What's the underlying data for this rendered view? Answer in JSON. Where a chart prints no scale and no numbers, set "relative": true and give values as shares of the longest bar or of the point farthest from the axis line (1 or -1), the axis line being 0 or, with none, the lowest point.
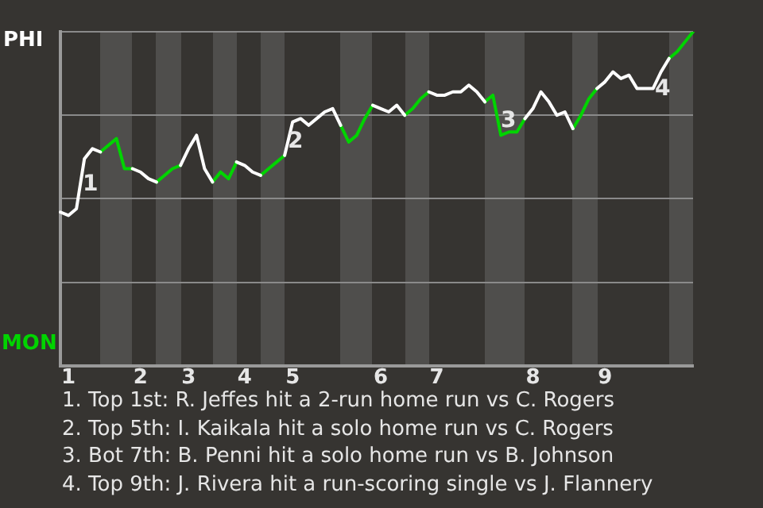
{
  "chart_data": {
    "type": "line",
    "relative": true,
    "categories": [
      null,
      "1",
      null,
      null,
      null,
      null,
      null,
      null,
      null,
      null,
      "2",
      null,
      null,
      null,
      null,
      null,
      "3",
      null,
      null,
      null,
      null,
      null,
      null,
      "4",
      null,
      null,
      null,
      null,
      null,
      "5",
      null,
      null,
      null,
      null,
      null,
      null,
      null,
      null,
      null,
      null,
      "6",
      null,
      null,
      null,
      null,
      null,
      null,
      "7",
      null,
      null,
      null,
      null,
      null,
      null,
      null,
      null,
      null,
      null,
      null,
      "8",
      null,
      null,
      null,
      null,
      null,
      null,
      null,
      null,
      "9",
      null,
      null,
      null,
      null,
      null,
      null,
      null,
      null,
      null,
      null,
      null
    ],
    "grid": "y",
    "legend": false,
    "marker": "none",
    "line_style": "solid",
    "series": [
      {
        "color": "#ffffff",
        "values": [
          0.46,
          0.45,
          0.47,
          0.62,
          0.65,
          0.64,
          null,
          null,
          null,
          0.59,
          0.58,
          0.56,
          0.55,
          null,
          null,
          0.6,
          0.65,
          0.69,
          0.59,
          0.55,
          null,
          null,
          0.61,
          0.6,
          0.58,
          0.57,
          null,
          null,
          0.63,
          0.73,
          0.74,
          0.72,
          0.74,
          0.76,
          0.77,
          0.72,
          null,
          null,
          null,
          0.78,
          0.77,
          0.76,
          0.78,
          0.75,
          null,
          null,
          0.82,
          0.81,
          0.81,
          0.82,
          0.82,
          0.84,
          0.82,
          0.79,
          null,
          null,
          null,
          null,
          0.74,
          0.77,
          0.82,
          0.79,
          0.75,
          0.76,
          0.71,
          null,
          null,
          0.83,
          0.85,
          0.88,
          0.86,
          0.87,
          0.83,
          0.83,
          0.83,
          0.88,
          0.92,
          null,
          null,
          null
        ]
      },
      {
        "color": "#00d400",
        "values": [
          null,
          null,
          null,
          null,
          null,
          0.64,
          0.66,
          0.68,
          0.59,
          0.59,
          null,
          null,
          0.55,
          0.57,
          0.59,
          0.6,
          null,
          null,
          null,
          0.55,
          0.58,
          0.56,
          0.61,
          null,
          null,
          0.57,
          0.59,
          0.61,
          0.63,
          null,
          null,
          null,
          null,
          null,
          null,
          0.72,
          0.67,
          0.69,
          0.74,
          0.78,
          null,
          null,
          null,
          0.75,
          0.77,
          0.8,
          0.82,
          null,
          null,
          null,
          null,
          null,
          null,
          0.79,
          0.81,
          0.69,
          0.7,
          0.7,
          0.74,
          null,
          null,
          null,
          null,
          null,
          0.71,
          0.75,
          0.8,
          0.83,
          null,
          null,
          null,
          null,
          null,
          null,
          null,
          null,
          0.92,
          0.94,
          0.97,
          1.0
        ]
      }
    ],
    "annotations": [
      "PHI",
      "MON",
      "1",
      "2",
      "3",
      "4",
      "1. Top 1st: R. Jeffes hit a 2-run home run vs C. Rogers",
      "2. Top 5th: I. Kaikala hit a solo home run vs C. Rogers",
      "3. Bot 7th: B. Penni hit a solo home run vs B. Johnson",
      "4. Top 9th: J. Rivera hit a run-scoring single vs J. Flannery"
    ]
  }
}
